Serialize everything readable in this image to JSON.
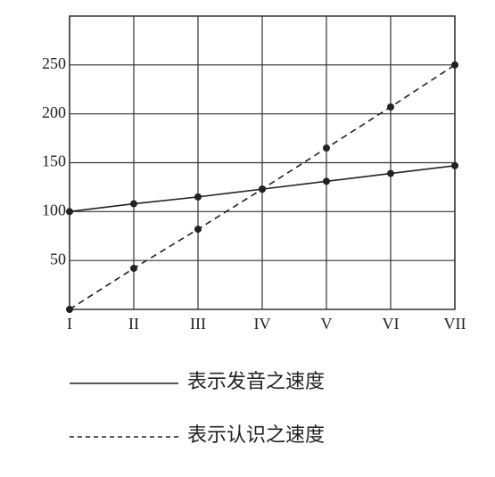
{
  "chart_data": {
    "type": "line",
    "categories": [
      "I",
      "II",
      "III",
      "IV",
      "V",
      "VI",
      "VII"
    ],
    "series": [
      {
        "name": "表示发音之速度",
        "color": "#222222",
        "dash": "solid",
        "values": [
          100,
          108,
          115,
          123,
          131,
          139,
          147
        ]
      },
      {
        "name": "表示认识之速度",
        "color": "#222222",
        "dash": "dashed",
        "values": [
          0,
          42,
          82,
          123,
          165,
          207,
          250
        ]
      }
    ],
    "ylim": [
      0,
      300
    ],
    "yticks": [
      50,
      100,
      150,
      200,
      250
    ],
    "grid": true
  }
}
